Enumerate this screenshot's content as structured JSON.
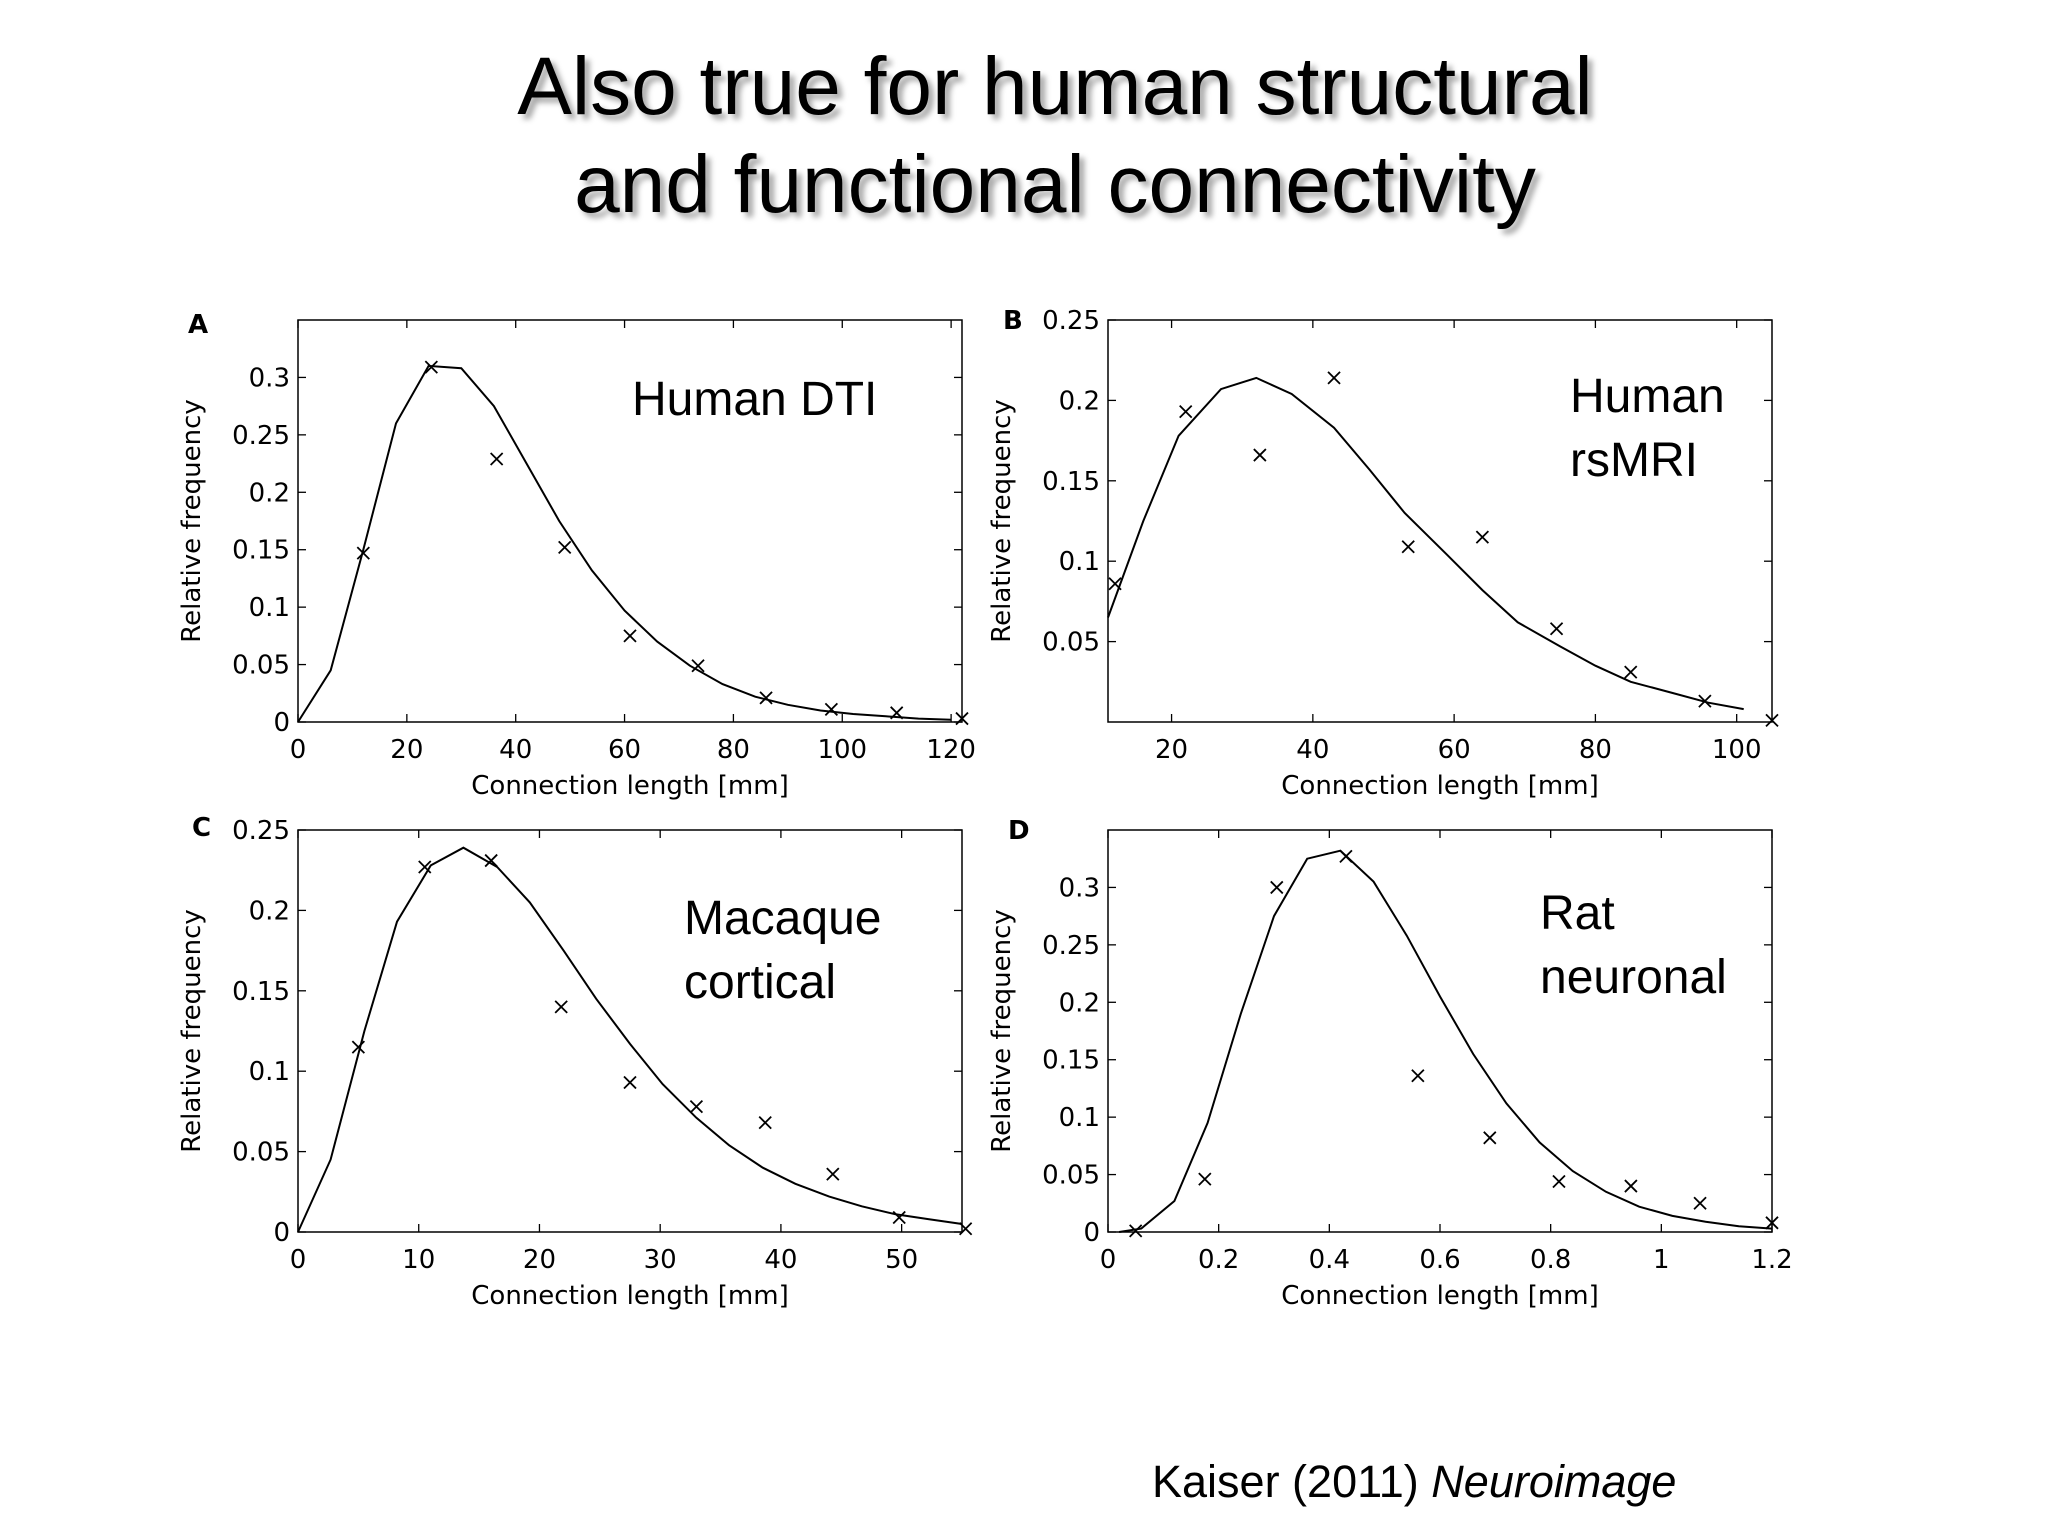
{
  "slide": {
    "title_line1": "Also true for human structural",
    "title_line2": "and functional connectivity",
    "citation_author": "Kaiser (2011) ",
    "citation_journal": "Neuroimage"
  },
  "chart_data": [
    {
      "type": "line+scatter",
      "panel": "A",
      "annotation": [
        "Human DTI"
      ],
      "xlabel": "Connection length [mm]",
      "ylabel": "Relative frequency",
      "xlim": [
        0,
        122
      ],
      "ylim": [
        0,
        0.35
      ],
      "xticks": [
        0,
        20,
        40,
        60,
        80,
        100,
        120
      ],
      "xtick_labels": [
        "0",
        "20",
        "40",
        "60",
        "80",
        "100",
        "120"
      ],
      "yticks": [
        0,
        0.05,
        0.1,
        0.15,
        0.2,
        0.25,
        0.3
      ],
      "ytick_labels": [
        "0",
        "0.05",
        "0.1",
        "0.15",
        "0.2",
        "0.25",
        "0.3"
      ],
      "series": [
        {
          "name": "fit",
          "style": "line",
          "x": [
            0,
            6,
            12,
            18,
            24,
            30,
            36,
            42,
            48,
            54,
            60,
            66,
            72,
            78,
            84,
            90,
            96,
            102,
            108,
            114,
            120
          ],
          "y": [
            0,
            0.045,
            0.15,
            0.26,
            0.31,
            0.308,
            0.275,
            0.225,
            0.175,
            0.132,
            0.097,
            0.07,
            0.049,
            0.033,
            0.022,
            0.015,
            0.01,
            0.007,
            0.005,
            0.003,
            0.002
          ]
        },
        {
          "name": "data",
          "style": "x-marker",
          "x": [
            12,
            24.5,
            36.5,
            49,
            61,
            73.5,
            86,
            98,
            110,
            122
          ],
          "y": [
            0.147,
            0.309,
            0.229,
            0.152,
            0.075,
            0.049,
            0.021,
            0.011,
            0.008,
            0.003
          ]
        }
      ]
    },
    {
      "type": "line+scatter",
      "panel": "B",
      "annotation": [
        "Human",
        "rsMRI"
      ],
      "xlabel": "Connection length [mm]",
      "ylabel": "Relative frequency",
      "xlim": [
        11,
        105
      ],
      "ylim": [
        0,
        0.25
      ],
      "xticks": [
        20,
        40,
        60,
        80,
        100
      ],
      "xtick_labels": [
        "20",
        "40",
        "60",
        "80",
        "100"
      ],
      "yticks": [
        0.05,
        0.1,
        0.15,
        0.2,
        0.25
      ],
      "ytick_labels": [
        "0.05",
        "0.1",
        "0.15",
        "0.2",
        "0.25"
      ],
      "series": [
        {
          "name": "fit",
          "style": "line",
          "x": [
            11,
            16,
            21,
            27,
            32,
            37,
            43,
            48,
            53,
            59,
            64,
            69,
            75,
            80,
            85,
            91,
            96,
            101
          ],
          "y": [
            0.065,
            0.125,
            0.178,
            0.207,
            0.214,
            0.204,
            0.183,
            0.157,
            0.13,
            0.104,
            0.082,
            0.062,
            0.047,
            0.035,
            0.025,
            0.018,
            0.012,
            0.008
          ]
        },
        {
          "name": "data",
          "style": "x-marker",
          "x": [
            12,
            22,
            32.5,
            43,
            53.5,
            64,
            74.5,
            85,
            95.5,
            105
          ],
          "y": [
            0.086,
            0.193,
            0.166,
            0.214,
            0.109,
            0.115,
            0.058,
            0.031,
            0.013,
            0.001
          ]
        }
      ]
    },
    {
      "type": "line+scatter",
      "panel": "C",
      "annotation": [
        "Macaque",
        "cortical"
      ],
      "xlabel": "Connection length [mm]",
      "ylabel": "Relative frequency",
      "xlim": [
        0,
        55
      ],
      "ylim": [
        0,
        0.25
      ],
      "xticks": [
        0,
        10,
        20,
        30,
        40,
        50
      ],
      "xtick_labels": [
        "0",
        "10",
        "20",
        "30",
        "40",
        "50"
      ],
      "yticks": [
        0,
        0.05,
        0.1,
        0.15,
        0.2,
        0.25
      ],
      "ytick_labels": [
        "0",
        "0.05",
        "0.1",
        "0.15",
        "0.2",
        "0.25"
      ],
      "series": [
        {
          "name": "fit",
          "style": "line",
          "x": [
            0,
            2.7,
            5.5,
            8.2,
            11,
            13.7,
            16.5,
            19.2,
            22,
            24.7,
            27.5,
            30.2,
            33,
            35.7,
            38.5,
            41.2,
            44,
            46.7,
            49.5,
            52.2,
            55
          ],
          "y": [
            0,
            0.045,
            0.125,
            0.193,
            0.228,
            0.239,
            0.227,
            0.205,
            0.175,
            0.145,
            0.117,
            0.092,
            0.071,
            0.054,
            0.04,
            0.03,
            0.022,
            0.016,
            0.011,
            0.008,
            0.005
          ]
        },
        {
          "name": "data",
          "style": "x-marker",
          "x": [
            5,
            10.5,
            16,
            21.8,
            27.5,
            33,
            38.7,
            44.3,
            49.8,
            55.3
          ],
          "y": [
            0.115,
            0.227,
            0.231,
            0.14,
            0.093,
            0.078,
            0.068,
            0.036,
            0.009,
            0.002
          ]
        }
      ]
    },
    {
      "type": "line+scatter",
      "panel": "D",
      "annotation": [
        "Rat",
        "neuronal"
      ],
      "xlabel": "Connection length [mm]",
      "ylabel": "Relative frequency",
      "xlim": [
        0,
        1.2
      ],
      "ylim": [
        0,
        0.35
      ],
      "xticks": [
        0,
        0.2,
        0.4,
        0.6,
        0.8,
        1.0,
        1.2
      ],
      "xtick_labels": [
        "0",
        "0.2",
        "0.4",
        "0.6",
        "0.8",
        "1",
        "1.2"
      ],
      "yticks": [
        0,
        0.05,
        0.1,
        0.15,
        0.2,
        0.25,
        0.3
      ],
      "ytick_labels": [
        "0",
        "0.05",
        "0.1",
        "0.15",
        "0.2",
        "0.25",
        "0.3"
      ],
      "series": [
        {
          "name": "fit",
          "style": "line",
          "x": [
            0.02,
            0.06,
            0.12,
            0.18,
            0.24,
            0.3,
            0.36,
            0.42,
            0.48,
            0.54,
            0.6,
            0.66,
            0.72,
            0.78,
            0.84,
            0.9,
            0.96,
            1.02,
            1.08,
            1.14,
            1.2
          ],
          "y": [
            0,
            0.003,
            0.027,
            0.095,
            0.19,
            0.275,
            0.325,
            0.332,
            0.305,
            0.258,
            0.205,
            0.155,
            0.112,
            0.078,
            0.053,
            0.035,
            0.022,
            0.014,
            0.009,
            0.005,
            0.003
          ]
        },
        {
          "name": "data",
          "style": "x-marker",
          "x": [
            0.05,
            0.175,
            0.305,
            0.43,
            0.56,
            0.69,
            0.815,
            0.945,
            1.07,
            1.2
          ],
          "y": [
            0.001,
            0.046,
            0.3,
            0.327,
            0.136,
            0.082,
            0.044,
            0.04,
            0.025,
            0.008
          ]
        }
      ]
    }
  ]
}
